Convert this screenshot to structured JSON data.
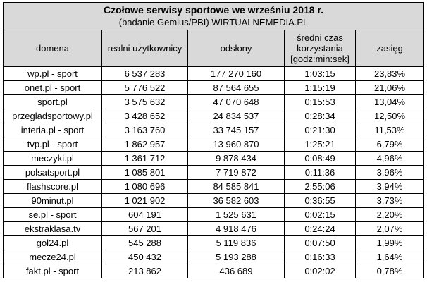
{
  "title": "Czołowe serwisy sportowe we wrześniu 2018 r.",
  "subtitle": "(badanie Gemius/PBI) WIRTUALNEMEDIA.PL",
  "columns": {
    "domain": "domena",
    "users": "realni użytkownicy",
    "views": "odsłony",
    "time_line1": "średni czas",
    "time_line2": "korzystania",
    "time_line3": "[godz:min:sek]",
    "reach": "zasięg"
  },
  "rows": [
    {
      "domain": "wp.pl - sport",
      "users": "6 537 283",
      "views": "177 270 160",
      "time": "1:03:15",
      "reach": "23,83%"
    },
    {
      "domain": "onet.pl - sport",
      "users": "5 776 522",
      "views": "87 564 655",
      "time": "1:15:19",
      "reach": "21,06%"
    },
    {
      "domain": "sport.pl",
      "users": "3 575 632",
      "views": "47 070 648",
      "time": "0:15:53",
      "reach": "13,04%"
    },
    {
      "domain": "przegladsportowy.pl",
      "users": "3 428 652",
      "views": "24 834 537",
      "time": "0:28:34",
      "reach": "12,50%"
    },
    {
      "domain": "interia.pl - sport",
      "users": "3 163 760",
      "views": "33 745 157",
      "time": "0:21:30",
      "reach": "11,53%"
    },
    {
      "domain": "tvp.pl - sport",
      "users": "1 862 957",
      "views": "13 960 870",
      "time": "1:25:21",
      "reach": "6,79%"
    },
    {
      "domain": "meczyki.pl",
      "users": "1 361 712",
      "views": "9 878 434",
      "time": "0:08:49",
      "reach": "4,96%"
    },
    {
      "domain": "polsatsport.pl",
      "users": "1 085 801",
      "views": "7 719 872",
      "time": "0:11:36",
      "reach": "3,96%"
    },
    {
      "domain": "flashscore.pl",
      "users": "1 080 696",
      "views": "84 585 841",
      "time": "2:55:06",
      "reach": "3,94%"
    },
    {
      "domain": "90minut.pl",
      "users": "1 021 902",
      "views": "36 582 603",
      "time": "0:36:55",
      "reach": "3,73%"
    },
    {
      "domain": "se.pl - sport",
      "users": "604 191",
      "views": "1 525 631",
      "time": "0:02:15",
      "reach": "2,20%"
    },
    {
      "domain": "ekstraklasa.tv",
      "users": "567 201",
      "views": "4 918 476",
      "time": "0:24:24",
      "reach": "2,07%"
    },
    {
      "domain": "gol24.pl",
      "users": "545 288",
      "views": "5 119 836",
      "time": "0:07:50",
      "reach": "1,99%"
    },
    {
      "domain": "mecze24.pl",
      "users": "450 432",
      "views": "5 193 288",
      "time": "0:16:33",
      "reach": "1,64%"
    },
    {
      "domain": "fakt.pl - sport",
      "users": "213 862",
      "views": "436 689",
      "time": "0:02:02",
      "reach": "0,78%"
    }
  ],
  "colors": {
    "header_bg": "#d9d9d9",
    "border": "#000000",
    "cell_bg": "#ffffff"
  }
}
